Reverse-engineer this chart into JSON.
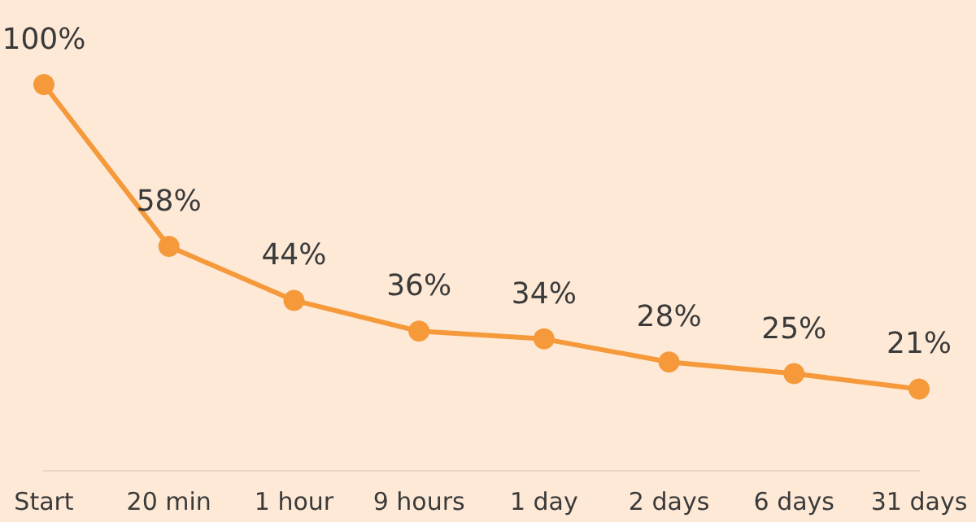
{
  "chart_data": {
    "type": "line",
    "categories": [
      "Start",
      "20 min",
      "1 hour",
      "9 hours",
      "1 day",
      "2 days",
      "6 days",
      "31 days"
    ],
    "series": [
      {
        "color": "#f5993a",
        "values": [
          100,
          58,
          44,
          36,
          34,
          28,
          25,
          21
        ],
        "value_labels": [
          "100%",
          "58%",
          "44%",
          "36%",
          "34%",
          "28%",
          "25%",
          "21%"
        ]
      }
    ],
    "marker": "circle",
    "line_style": "solid"
  }
}
